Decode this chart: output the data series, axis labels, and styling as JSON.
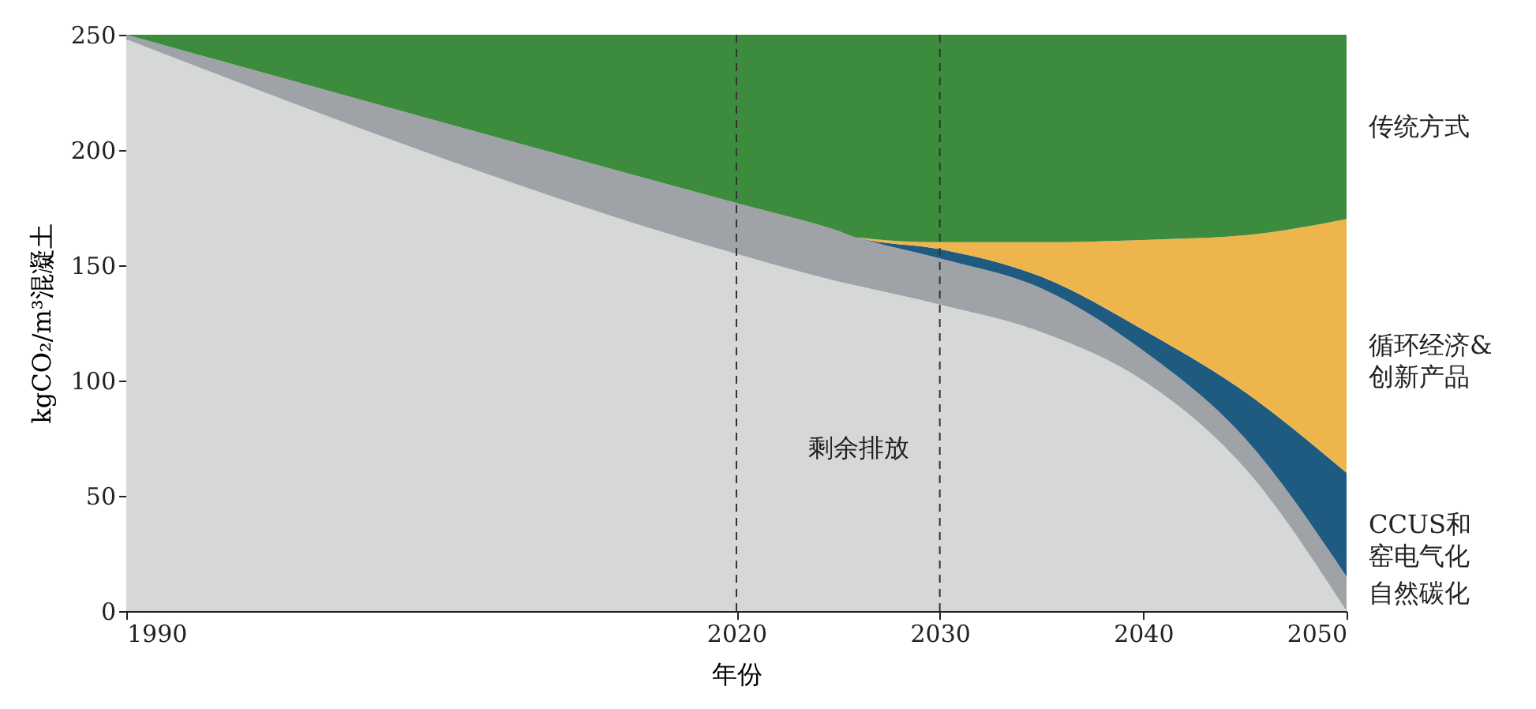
{
  "chart_data": {
    "type": "area",
    "stacked": true,
    "xlabel": "年份",
    "ylabel": "kgCO₂/m³混凝土",
    "x": [
      1990,
      2020,
      2025,
      2026,
      2030,
      2035,
      2040,
      2045,
      2050
    ],
    "series": [
      {
        "name": "剩余排放",
        "color": "#d6d7d7",
        "values": [
          248,
          155,
          143,
          141,
          133,
          121,
          100,
          62,
          0
        ]
      },
      {
        "name": "自然碳化",
        "color": "#9fa2a6",
        "values": [
          2,
          22,
          22,
          21,
          20,
          19,
          13,
          13,
          15
        ]
      },
      {
        "name": "CCUS和窑电气化",
        "color": "#1f5a80",
        "values": [
          0,
          0,
          0,
          0,
          4,
          5,
          9,
          20,
          45
        ]
      },
      {
        "name": "循环经济&创新产品",
        "color": "#efb54d",
        "values": [
          0,
          0,
          0,
          0,
          3,
          15,
          39,
          68,
          110
        ]
      },
      {
        "name": "传统方式",
        "color": "#3d8b3d",
        "values": [
          0,
          73,
          85,
          88,
          90,
          90,
          89,
          87,
          80
        ]
      }
    ],
    "xlim": [
      1990,
      2050
    ],
    "xticks": [
      1990,
      2020,
      2030,
      2040,
      2050
    ],
    "ylim": [
      0,
      250
    ],
    "yticks": [
      0,
      50,
      100,
      150,
      200,
      250
    ],
    "ref_lines": [
      {
        "axis": "x",
        "value": 2020,
        "line_style": "dashed",
        "color": "#333333"
      },
      {
        "axis": "x",
        "value": 2030,
        "line_style": "dashed",
        "color": "#333333"
      }
    ],
    "grid": false,
    "legend": false
  }
}
